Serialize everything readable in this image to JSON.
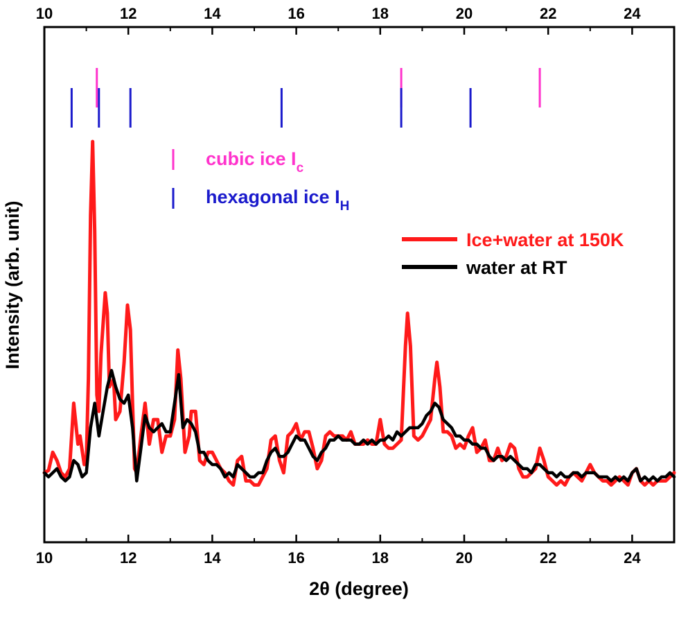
{
  "chart_data": {
    "type": "line",
    "xlabel": "2θ (degree)",
    "ylabel": "Intensity (arb. unit)",
    "xlim": [
      10,
      25
    ],
    "ylim": [
      -0.8,
      5.5
    ],
    "x_ticks_major": [
      "10",
      "12",
      "14",
      "16",
      "18",
      "20",
      "22",
      "24"
    ],
    "x_ticks_minor": [
      11,
      13,
      15,
      17,
      19,
      21,
      23,
      25
    ],
    "top_axis": true,
    "grid": false,
    "legend_position": "middle-right",
    "series": [
      {
        "name": "Ice+water at 150K",
        "color": "#ff1a1a",
        "points": [
          [
            10.0,
            0.05
          ],
          [
            10.1,
            0.08
          ],
          [
            10.2,
            0.3
          ],
          [
            10.3,
            0.2
          ],
          [
            10.4,
            0.05
          ],
          [
            10.5,
            0.0
          ],
          [
            10.6,
            0.1
          ],
          [
            10.7,
            0.9
          ],
          [
            10.8,
            0.4
          ],
          [
            10.85,
            0.5
          ],
          [
            10.95,
            0.15
          ],
          [
            11.0,
            0.2
          ],
          [
            11.05,
            1.2
          ],
          [
            11.1,
            3.2
          ],
          [
            11.15,
            4.1
          ],
          [
            11.2,
            3.0
          ],
          [
            11.25,
            1.0
          ],
          [
            11.3,
            0.8
          ],
          [
            11.35,
            1.5
          ],
          [
            11.45,
            2.25
          ],
          [
            11.5,
            2.0
          ],
          [
            11.55,
            1.1
          ],
          [
            11.65,
            1.2
          ],
          [
            11.7,
            0.7
          ],
          [
            11.8,
            0.8
          ],
          [
            11.9,
            1.4
          ],
          [
            11.98,
            2.1
          ],
          [
            12.05,
            1.8
          ],
          [
            12.1,
            0.9
          ],
          [
            12.15,
            0.1
          ],
          [
            12.2,
            0.05
          ],
          [
            12.3,
            0.5
          ],
          [
            12.4,
            0.9
          ],
          [
            12.5,
            0.4
          ],
          [
            12.6,
            0.7
          ],
          [
            12.7,
            0.7
          ],
          [
            12.8,
            0.3
          ],
          [
            12.9,
            0.5
          ],
          [
            13.0,
            0.5
          ],
          [
            13.1,
            0.7
          ],
          [
            13.18,
            1.55
          ],
          [
            13.25,
            1.2
          ],
          [
            13.35,
            0.3
          ],
          [
            13.45,
            0.5
          ],
          [
            13.5,
            0.8
          ],
          [
            13.6,
            0.8
          ],
          [
            13.7,
            0.2
          ],
          [
            13.8,
            0.15
          ],
          [
            13.9,
            0.3
          ],
          [
            14.0,
            0.3
          ],
          [
            14.1,
            0.2
          ],
          [
            14.2,
            0.1
          ],
          [
            14.3,
            0.05
          ],
          [
            14.4,
            -0.05
          ],
          [
            14.5,
            -0.1
          ],
          [
            14.6,
            0.2
          ],
          [
            14.7,
            0.25
          ],
          [
            14.8,
            -0.05
          ],
          [
            14.9,
            -0.05
          ],
          [
            15.0,
            -0.1
          ],
          [
            15.1,
            -0.1
          ],
          [
            15.2,
            0.0
          ],
          [
            15.3,
            0.1
          ],
          [
            15.4,
            0.45
          ],
          [
            15.5,
            0.5
          ],
          [
            15.6,
            0.2
          ],
          [
            15.7,
            0.05
          ],
          [
            15.8,
            0.5
          ],
          [
            15.9,
            0.55
          ],
          [
            16.0,
            0.65
          ],
          [
            16.1,
            0.45
          ],
          [
            16.2,
            0.55
          ],
          [
            16.3,
            0.55
          ],
          [
            16.4,
            0.35
          ],
          [
            16.5,
            0.1
          ],
          [
            16.6,
            0.2
          ],
          [
            16.7,
            0.5
          ],
          [
            16.8,
            0.55
          ],
          [
            16.9,
            0.5
          ],
          [
            17.0,
            0.5
          ],
          [
            17.1,
            0.5
          ],
          [
            17.2,
            0.45
          ],
          [
            17.3,
            0.55
          ],
          [
            17.4,
            0.4
          ],
          [
            17.5,
            0.4
          ],
          [
            17.6,
            0.4
          ],
          [
            17.7,
            0.45
          ],
          [
            17.8,
            0.4
          ],
          [
            17.9,
            0.4
          ],
          [
            18.0,
            0.7
          ],
          [
            18.05,
            0.55
          ],
          [
            18.1,
            0.4
          ],
          [
            18.2,
            0.35
          ],
          [
            18.3,
            0.35
          ],
          [
            18.4,
            0.4
          ],
          [
            18.5,
            0.45
          ],
          [
            18.6,
            1.6
          ],
          [
            18.65,
            2.0
          ],
          [
            18.72,
            1.6
          ],
          [
            18.8,
            0.5
          ],
          [
            18.9,
            0.45
          ],
          [
            19.0,
            0.5
          ],
          [
            19.1,
            0.6
          ],
          [
            19.2,
            0.7
          ],
          [
            19.3,
            1.2
          ],
          [
            19.35,
            1.4
          ],
          [
            19.42,
            1.1
          ],
          [
            19.5,
            0.55
          ],
          [
            19.6,
            0.55
          ],
          [
            19.7,
            0.5
          ],
          [
            19.8,
            0.35
          ],
          [
            19.9,
            0.4
          ],
          [
            20.0,
            0.35
          ],
          [
            20.1,
            0.5
          ],
          [
            20.2,
            0.6
          ],
          [
            20.3,
            0.3
          ],
          [
            20.4,
            0.35
          ],
          [
            20.5,
            0.45
          ],
          [
            20.6,
            0.2
          ],
          [
            20.7,
            0.2
          ],
          [
            20.8,
            0.35
          ],
          [
            20.9,
            0.2
          ],
          [
            21.0,
            0.25
          ],
          [
            21.1,
            0.4
          ],
          [
            21.2,
            0.35
          ],
          [
            21.3,
            0.1
          ],
          [
            21.4,
            0.0
          ],
          [
            21.5,
            0.0
          ],
          [
            21.6,
            0.05
          ],
          [
            21.7,
            0.1
          ],
          [
            21.8,
            0.35
          ],
          [
            21.9,
            0.2
          ],
          [
            22.0,
            0.0
          ],
          [
            22.1,
            -0.05
          ],
          [
            22.2,
            -0.1
          ],
          [
            22.3,
            -0.05
          ],
          [
            22.4,
            -0.1
          ],
          [
            22.5,
            0.0
          ],
          [
            22.6,
            0.05
          ],
          [
            22.7,
            0.0
          ],
          [
            22.8,
            -0.05
          ],
          [
            22.9,
            0.05
          ],
          [
            23.0,
            0.15
          ],
          [
            23.1,
            0.05
          ],
          [
            23.2,
            0.0
          ],
          [
            23.3,
            -0.05
          ],
          [
            23.4,
            -0.05
          ],
          [
            23.5,
            -0.1
          ],
          [
            23.6,
            -0.05
          ],
          [
            23.7,
            0.0
          ],
          [
            23.8,
            -0.05
          ],
          [
            23.9,
            -0.1
          ],
          [
            24.0,
            0.05
          ],
          [
            24.1,
            0.1
          ],
          [
            24.2,
            -0.05
          ],
          [
            24.3,
            -0.1
          ],
          [
            24.4,
            -0.05
          ],
          [
            24.5,
            -0.1
          ],
          [
            24.6,
            -0.05
          ],
          [
            24.7,
            -0.05
          ],
          [
            24.8,
            -0.05
          ],
          [
            24.9,
            0.0
          ],
          [
            25.0,
            0.05
          ]
        ]
      },
      {
        "name": "water at RT",
        "color": "#000000",
        "points": [
          [
            10.0,
            0.05
          ],
          [
            10.1,
            0.0
          ],
          [
            10.2,
            0.05
          ],
          [
            10.3,
            0.1
          ],
          [
            10.4,
            0.0
          ],
          [
            10.5,
            -0.05
          ],
          [
            10.6,
            0.0
          ],
          [
            10.7,
            0.2
          ],
          [
            10.8,
            0.15
          ],
          [
            10.9,
            0.0
          ],
          [
            11.0,
            0.05
          ],
          [
            11.1,
            0.6
          ],
          [
            11.2,
            0.9
          ],
          [
            11.3,
            0.5
          ],
          [
            11.4,
            0.8
          ],
          [
            11.5,
            1.1
          ],
          [
            11.6,
            1.3
          ],
          [
            11.7,
            1.1
          ],
          [
            11.8,
            0.95
          ],
          [
            11.9,
            0.9
          ],
          [
            12.0,
            1.0
          ],
          [
            12.1,
            0.6
          ],
          [
            12.2,
            -0.05
          ],
          [
            12.3,
            0.35
          ],
          [
            12.4,
            0.75
          ],
          [
            12.5,
            0.6
          ],
          [
            12.6,
            0.55
          ],
          [
            12.7,
            0.6
          ],
          [
            12.8,
            0.65
          ],
          [
            12.9,
            0.55
          ],
          [
            13.0,
            0.55
          ],
          [
            13.1,
            0.9
          ],
          [
            13.2,
            1.25
          ],
          [
            13.3,
            0.6
          ],
          [
            13.4,
            0.7
          ],
          [
            13.5,
            0.65
          ],
          [
            13.6,
            0.55
          ],
          [
            13.7,
            0.3
          ],
          [
            13.8,
            0.3
          ],
          [
            13.9,
            0.2
          ],
          [
            14.0,
            0.15
          ],
          [
            14.1,
            0.15
          ],
          [
            14.2,
            0.1
          ],
          [
            14.3,
            0.0
          ],
          [
            14.4,
            0.05
          ],
          [
            14.5,
            0.0
          ],
          [
            14.6,
            0.15
          ],
          [
            14.7,
            0.1
          ],
          [
            14.8,
            0.05
          ],
          [
            14.9,
            0.0
          ],
          [
            15.0,
            0.0
          ],
          [
            15.1,
            0.05
          ],
          [
            15.2,
            0.05
          ],
          [
            15.3,
            0.2
          ],
          [
            15.4,
            0.3
          ],
          [
            15.5,
            0.35
          ],
          [
            15.6,
            0.25
          ],
          [
            15.7,
            0.25
          ],
          [
            15.8,
            0.3
          ],
          [
            15.9,
            0.4
          ],
          [
            16.0,
            0.5
          ],
          [
            16.1,
            0.45
          ],
          [
            16.2,
            0.45
          ],
          [
            16.3,
            0.35
          ],
          [
            16.4,
            0.25
          ],
          [
            16.5,
            0.2
          ],
          [
            16.6,
            0.3
          ],
          [
            16.7,
            0.35
          ],
          [
            16.8,
            0.45
          ],
          [
            16.9,
            0.45
          ],
          [
            17.0,
            0.5
          ],
          [
            17.1,
            0.45
          ],
          [
            17.2,
            0.45
          ],
          [
            17.3,
            0.45
          ],
          [
            17.4,
            0.4
          ],
          [
            17.5,
            0.4
          ],
          [
            17.6,
            0.45
          ],
          [
            17.7,
            0.4
          ],
          [
            17.8,
            0.45
          ],
          [
            17.9,
            0.4
          ],
          [
            18.0,
            0.45
          ],
          [
            18.1,
            0.45
          ],
          [
            18.2,
            0.5
          ],
          [
            18.3,
            0.45
          ],
          [
            18.4,
            0.55
          ],
          [
            18.5,
            0.5
          ],
          [
            18.6,
            0.55
          ],
          [
            18.7,
            0.6
          ],
          [
            18.8,
            0.6
          ],
          [
            18.9,
            0.6
          ],
          [
            19.0,
            0.65
          ],
          [
            19.1,
            0.75
          ],
          [
            19.2,
            0.8
          ],
          [
            19.3,
            0.9
          ],
          [
            19.4,
            0.85
          ],
          [
            19.5,
            0.7
          ],
          [
            19.6,
            0.65
          ],
          [
            19.7,
            0.6
          ],
          [
            19.8,
            0.5
          ],
          [
            19.9,
            0.5
          ],
          [
            20.0,
            0.45
          ],
          [
            20.1,
            0.45
          ],
          [
            20.2,
            0.4
          ],
          [
            20.3,
            0.4
          ],
          [
            20.4,
            0.35
          ],
          [
            20.5,
            0.35
          ],
          [
            20.6,
            0.25
          ],
          [
            20.7,
            0.2
          ],
          [
            20.8,
            0.25
          ],
          [
            20.9,
            0.25
          ],
          [
            21.0,
            0.2
          ],
          [
            21.1,
            0.25
          ],
          [
            21.2,
            0.2
          ],
          [
            21.3,
            0.15
          ],
          [
            21.4,
            0.1
          ],
          [
            21.5,
            0.1
          ],
          [
            21.6,
            0.05
          ],
          [
            21.7,
            0.15
          ],
          [
            21.8,
            0.15
          ],
          [
            21.9,
            0.1
          ],
          [
            22.0,
            0.05
          ],
          [
            22.1,
            0.05
          ],
          [
            22.2,
            0.0
          ],
          [
            22.3,
            0.05
          ],
          [
            22.4,
            0.0
          ],
          [
            22.5,
            0.0
          ],
          [
            22.6,
            0.05
          ],
          [
            22.7,
            0.05
          ],
          [
            22.8,
            0.0
          ],
          [
            22.9,
            0.05
          ],
          [
            23.0,
            0.05
          ],
          [
            23.1,
            0.05
          ],
          [
            23.2,
            0.0
          ],
          [
            23.3,
            0.0
          ],
          [
            23.4,
            0.0
          ],
          [
            23.5,
            -0.05
          ],
          [
            23.6,
            0.0
          ],
          [
            23.7,
            -0.05
          ],
          [
            23.8,
            0.0
          ],
          [
            23.9,
            -0.05
          ],
          [
            24.0,
            0.05
          ],
          [
            24.1,
            0.1
          ],
          [
            24.2,
            -0.05
          ],
          [
            24.3,
            0.0
          ],
          [
            24.4,
            -0.05
          ],
          [
            24.5,
            0.0
          ],
          [
            24.6,
            -0.05
          ],
          [
            24.7,
            0.0
          ],
          [
            24.8,
            0.0
          ],
          [
            24.9,
            0.05
          ],
          [
            25.0,
            0.0
          ]
        ]
      }
    ],
    "reference_lines": {
      "cubic": {
        "name": "cubic ice I",
        "subscript": "c",
        "color": "#ff33cc",
        "positions": [
          11.25,
          18.5,
          21.8
        ]
      },
      "hexagonal": {
        "name": "hexagonal ice I",
        "subscript": "H",
        "color": "#1a1acc",
        "positions": [
          10.65,
          11.3,
          12.05,
          15.65,
          18.5,
          20.15
        ]
      }
    }
  }
}
